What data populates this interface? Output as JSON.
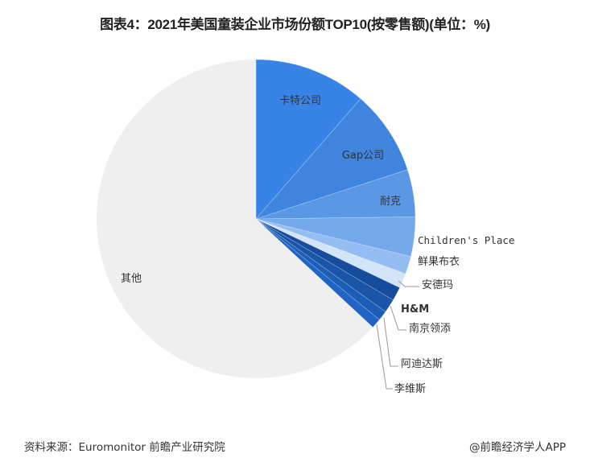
{
  "title": "图表4：2021年美国童装企业市场份额TOP10(按零售额)(单位：%)",
  "source": "资料来源：Euromonitor 前瞻产业研究院",
  "credit": "@前瞻经济学人APP",
  "chart_data": {
    "type": "pie",
    "title": "图表4：2021年美国童装企业市场份额TOP10(按零售额)(单位：%)",
    "unit": "%",
    "start_angle": "12 o'clock",
    "direction": "clockwise",
    "categories": [
      "卡特公司",
      "Gap公司",
      "耐克",
      "Children's Place",
      "鲜果布衣",
      "安德玛",
      "H&M",
      "南京领添",
      "阿迪达斯",
      "李维斯",
      "其他"
    ],
    "values": [
      11.4,
      8.6,
      4.8,
      4.0,
      1.8,
      1.5,
      1.4,
      1.4,
      1.0,
      1.0,
      63.1
    ],
    "colors": [
      "#3884e6",
      "#3f85de",
      "#5a98e6",
      "#74a9ec",
      "#94bdf2",
      "#d3e4f9",
      "#154c9c",
      "#1a55a8",
      "#1c5db6",
      "#1f64c6",
      "#efefef"
    ]
  }
}
